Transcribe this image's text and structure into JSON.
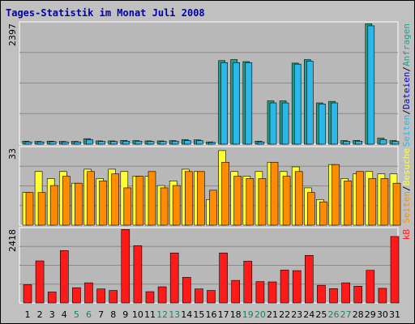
{
  "title": "Tages-Statistik im Monat Juli 2008",
  "colors": {
    "background": "#c0c0c0",
    "plot_background": "#b8b8b8",
    "grid": "#8a8a8a",
    "anfragen": "#1fa08c",
    "dateien": "#2ab8e8",
    "seiten": "#ff8c00",
    "besuche": "#ffff33",
    "kb": "#ff1a1a",
    "weekday_label": "#000000",
    "weekend_label": "#1f8060"
  },
  "chart_data": [
    {
      "type": "bar",
      "panel": "top",
      "ymax_label": "2397",
      "ylim": [
        0,
        2397
      ],
      "legend": [
        {
          "text": "Seiten",
          "color": "#2ab8e8"
        },
        {
          "text": "/",
          "color": "#000000"
        },
        {
          "text": "Dateien",
          "color": "#0000cc"
        },
        {
          "text": "/",
          "color": "#000000"
        },
        {
          "text": "Anfragen",
          "color": "#1fa08c"
        }
      ],
      "series": [
        {
          "name": "Anfragen",
          "values": [
            60,
            55,
            60,
            55,
            55,
            110,
            65,
            65,
            75,
            70,
            65,
            65,
            70,
            90,
            85,
            45,
            1660,
            1680,
            1640,
            60,
            860,
            860,
            1610,
            1680,
            820,
            850,
            70,
            75,
            2390,
            120,
            70
          ]
        },
        {
          "name": "Dateien",
          "values": [
            45,
            45,
            50,
            45,
            45,
            90,
            55,
            55,
            60,
            60,
            55,
            55,
            60,
            70,
            70,
            35,
            1620,
            1620,
            1620,
            45,
            820,
            820,
            1590,
            1650,
            800,
            820,
            55,
            60,
            2350,
            90,
            55
          ]
        }
      ]
    },
    {
      "type": "bar",
      "panel": "middle",
      "ymax_label": "33",
      "ylim": [
        0,
        33
      ],
      "legend": [
        {
          "text": "Seiten",
          "color": "#ff8c00"
        },
        {
          "text": "/",
          "color": "#000000"
        },
        {
          "text": "Besuche",
          "color": "#ffff33"
        }
      ],
      "series": [
        {
          "name": "Besuche",
          "values": [
            14,
            23,
            20,
            23,
            18,
            24,
            20,
            24,
            23,
            21,
            21,
            17,
            19,
            24,
            23,
            11,
            32,
            23,
            21,
            23,
            27,
            23,
            25,
            16,
            11,
            26,
            20,
            22,
            23,
            22,
            22
          ]
        },
        {
          "name": "Seiten",
          "values": [
            14,
            14,
            17,
            21,
            18,
            23,
            19,
            22,
            16,
            21,
            23,
            16,
            17,
            23,
            23,
            15,
            27,
            21,
            20,
            20,
            27,
            21,
            23,
            14,
            10,
            26,
            19,
            23,
            20,
            20,
            18
          ]
        }
      ]
    },
    {
      "type": "bar",
      "panel": "bottom",
      "ymax_label": "2418",
      "ylim": [
        0,
        2418
      ],
      "legend": [
        {
          "text": "kB",
          "color": "#ff1a1a"
        }
      ],
      "series": [
        {
          "name": "kB",
          "values": [
            600,
            1380,
            360,
            1720,
            500,
            660,
            460,
            410,
            2410,
            1880,
            370,
            530,
            1640,
            840,
            460,
            410,
            1640,
            740,
            1370,
            700,
            690,
            1080,
            1060,
            1560,
            580,
            470,
            660,
            550,
            1070,
            480,
            2180
          ]
        }
      ]
    }
  ],
  "days": [
    {
      "label": "1",
      "weekend": false
    },
    {
      "label": "2",
      "weekend": false
    },
    {
      "label": "3",
      "weekend": false
    },
    {
      "label": "4",
      "weekend": false
    },
    {
      "label": "5",
      "weekend": true
    },
    {
      "label": "6",
      "weekend": true
    },
    {
      "label": "7",
      "weekend": false
    },
    {
      "label": "8",
      "weekend": false
    },
    {
      "label": "9",
      "weekend": false
    },
    {
      "label": "10",
      "weekend": false
    },
    {
      "label": "11",
      "weekend": false
    },
    {
      "label": "12",
      "weekend": true
    },
    {
      "label": "13",
      "weekend": true
    },
    {
      "label": "14",
      "weekend": false
    },
    {
      "label": "15",
      "weekend": false
    },
    {
      "label": "16",
      "weekend": false
    },
    {
      "label": "17",
      "weekend": false
    },
    {
      "label": "18",
      "weekend": false
    },
    {
      "label": "19",
      "weekend": true
    },
    {
      "label": "20",
      "weekend": true
    },
    {
      "label": "21",
      "weekend": false
    },
    {
      "label": "22",
      "weekend": false
    },
    {
      "label": "23",
      "weekend": false
    },
    {
      "label": "24",
      "weekend": false
    },
    {
      "label": "25",
      "weekend": false
    },
    {
      "label": "26",
      "weekend": true
    },
    {
      "label": "27",
      "weekend": true
    },
    {
      "label": "28",
      "weekend": false
    },
    {
      "label": "29",
      "weekend": false
    },
    {
      "label": "30",
      "weekend": false
    },
    {
      "label": "31",
      "weekend": false
    }
  ]
}
